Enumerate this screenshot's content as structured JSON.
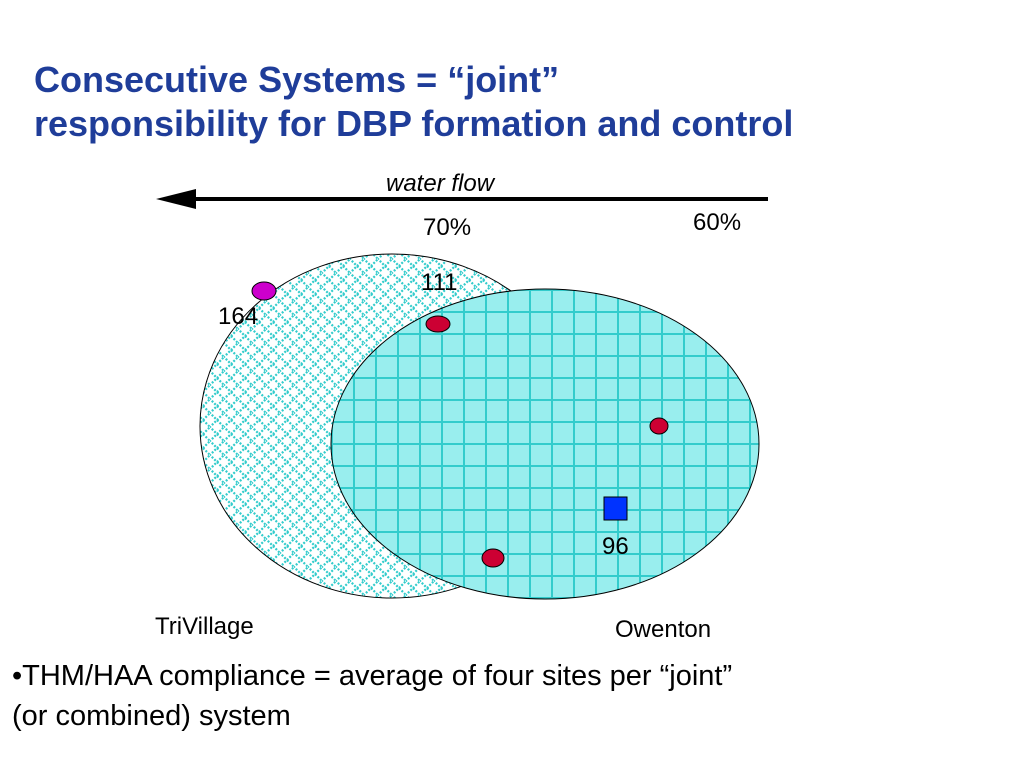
{
  "slide": {
    "title_line1": "Consecutive Systems = “joint”",
    "title_line2": "responsibility for DBP formation and control",
    "title_color": "#1f3d99"
  },
  "diagram": {
    "flow_label": "water flow",
    "arrow_direction": "left",
    "percent_left": "70%",
    "percent_right": "60%",
    "systems": [
      {
        "name": "TriVillage",
        "fill": "#ffffff",
        "pattern_color": "#33cccc",
        "pattern": "diamond-lattice"
      },
      {
        "name": "Owenton",
        "fill": "#99eeee",
        "pattern_color": "#33cccc",
        "pattern": "grid"
      }
    ],
    "site_values": [
      "164",
      "111",
      "96"
    ],
    "marker_colors": {
      "purple": "#cc00cc",
      "red": "#cc0033",
      "blue_square": "#0033ff"
    }
  },
  "bullet": {
    "line1": "•THM/HAA compliance = average of four sites per “joint”",
    "line2": "(or combined) system"
  }
}
